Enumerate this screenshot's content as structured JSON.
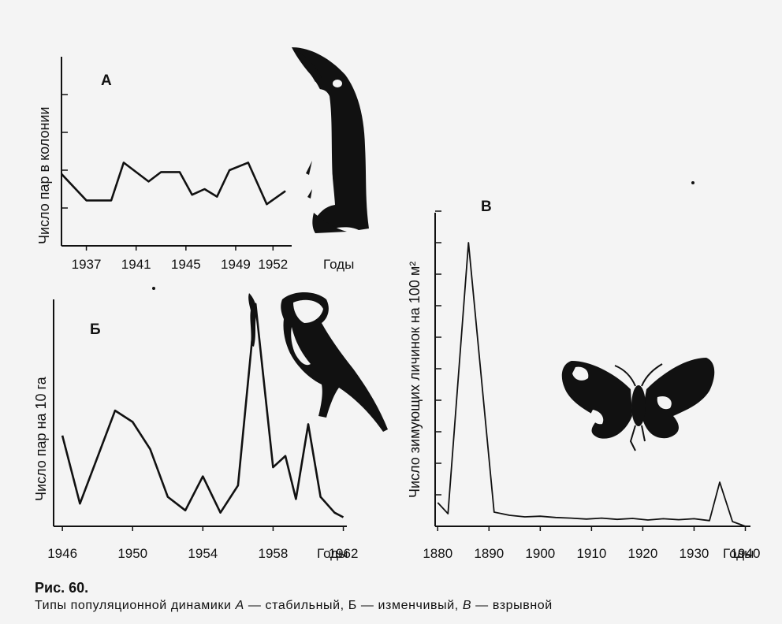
{
  "caption": {
    "title": "Рис. 60.",
    "text_prefix": "Типы популяционной динамики ",
    "letter_a": "А",
    "text_a": " — стабильный, Б — изменчивый, ",
    "letter_v": "В",
    "text_v": " — взрывной"
  },
  "colors": {
    "ink": "#111111",
    "background": "#f4f4f4"
  },
  "illustrations": [
    "penguin-illustration",
    "bird-illustration",
    "moth-illustration"
  ],
  "chart_data": [
    {
      "type": "line",
      "panel": "А",
      "ylabel": "Число пар в колонии",
      "xlabel": "Годы",
      "x_ticks": [
        "1937",
        "1941",
        "1945",
        "1949",
        "1952"
      ],
      "ylim": [
        0,
        5
      ],
      "y_ticks": [
        1,
        2,
        3,
        4
      ],
      "grid": false,
      "series": [
        {
          "x": [
            1935,
            1937,
            1939,
            1940,
            1942,
            1943,
            1944.5,
            1945.5,
            1946.5,
            1947.5,
            1948.5,
            1950,
            1951.5,
            1953
          ],
          "y": [
            1.9,
            1.2,
            1.2,
            2.2,
            1.7,
            1.95,
            1.95,
            1.35,
            1.5,
            1.3,
            2.0,
            2.2,
            1.1,
            1.45
          ]
        }
      ]
    },
    {
      "type": "line",
      "panel": "Б",
      "ylabel": "Число пар на 10 га",
      "xlabel": "Годы",
      "x_ticks": [
        "1946",
        "1950",
        "1954",
        "1958",
        "1962"
      ],
      "ylim": [
        0,
        10
      ],
      "grid": false,
      "series": [
        {
          "x": [
            1946,
            1947,
            1949,
            1950,
            1951,
            1952,
            1953,
            1954,
            1955,
            1956,
            1957,
            1958,
            1958.7,
            1959.3,
            1960,
            1960.7,
            1961.5,
            1962
          ],
          "y": [
            4.0,
            1.0,
            5.1,
            4.6,
            3.4,
            1.3,
            0.7,
            2.2,
            0.6,
            1.8,
            9.8,
            2.6,
            3.1,
            1.2,
            4.5,
            1.3,
            0.6,
            0.4
          ]
        }
      ]
    },
    {
      "type": "line",
      "panel": "В",
      "ylabel": "Число зимующих личинок на 100 м²",
      "xlabel": "Годы",
      "x_ticks": [
        "1880",
        "1890",
        "1900",
        "1910",
        "1920",
        "1930",
        "1940"
      ],
      "ylim": [
        0,
        100
      ],
      "y_ticks": [
        10,
        20,
        30,
        40,
        50,
        60,
        70,
        80,
        90,
        100
      ],
      "grid": false,
      "series": [
        {
          "x": [
            1880,
            1882,
            1886,
            1891,
            1894,
            1897,
            1900,
            1903,
            1906,
            1909,
            1912,
            1915,
            1918,
            1921,
            1924,
            1927,
            1930,
            1933,
            1935,
            1937.5,
            1940
          ],
          "y": [
            7.5,
            4,
            90,
            4.5,
            3.5,
            3,
            3.2,
            2.8,
            2.6,
            2.3,
            2.6,
            2.2,
            2.5,
            2.0,
            2.4,
            2.1,
            2.4,
            1.8,
            14,
            1.5,
            0
          ]
        }
      ]
    }
  ]
}
